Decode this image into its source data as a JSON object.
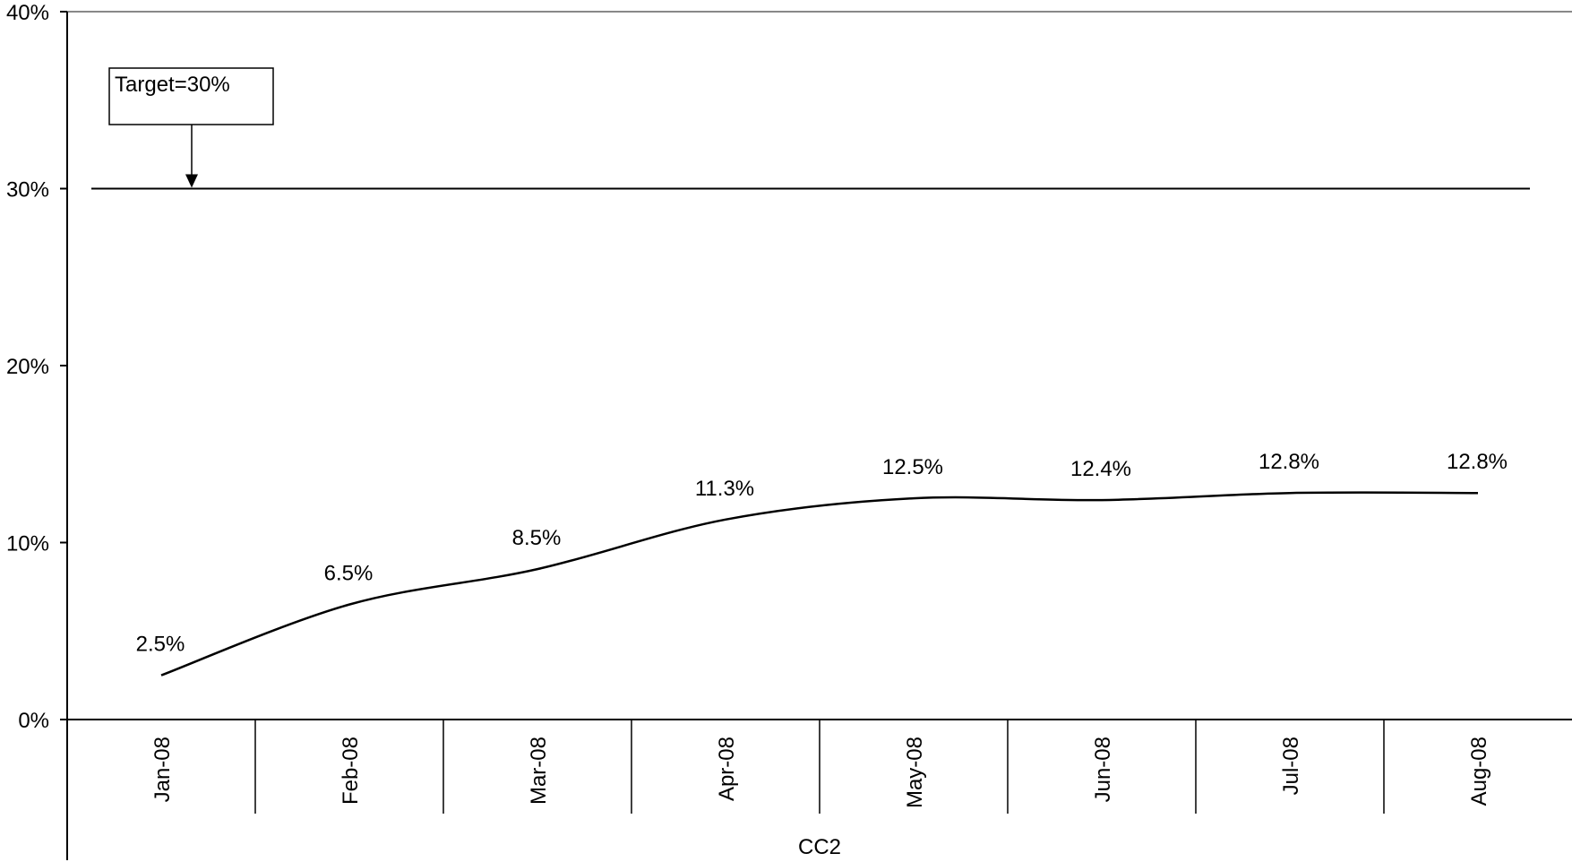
{
  "chart_data": {
    "type": "line",
    "title": "",
    "xlabel": "CC2",
    "ylabel": "",
    "categories": [
      "Jan-08",
      "Feb-08",
      "Mar-08",
      "Apr-08",
      "May-08",
      "Jun-08",
      "Jul-08",
      "Aug-08"
    ],
    "series": [
      {
        "values": [
          2.5,
          6.5,
          8.5,
          11.3,
          12.5,
          12.4,
          12.8,
          12.8
        ],
        "labels": [
          "2.5%",
          "6.5%",
          "8.5%",
          "11.3%",
          "12.5%",
          "12.4%",
          "12.8%",
          "12.8%"
        ],
        "color": "#000000",
        "smooth": true
      }
    ],
    "ylim": [
      0,
      40
    ],
    "yticks": [
      0,
      10,
      20,
      30,
      40
    ],
    "ytick_labels": [
      "0%",
      "10%",
      "20%",
      "30%",
      "40%"
    ],
    "target": {
      "value": 30,
      "label": "Target=30%"
    },
    "grid": false,
    "legend": "none"
  }
}
